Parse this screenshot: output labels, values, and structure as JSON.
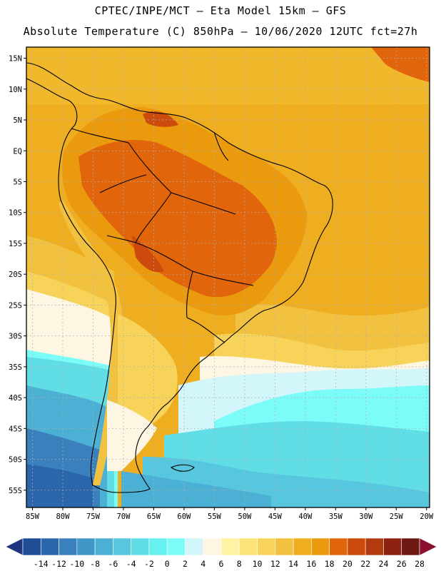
{
  "header": {
    "line1": "CPTEC/INPE/MCT –  Eta Model 15km – GFS",
    "line2": "Absolute Temperature (C) 850hPa – 10/06/2020 12UTC fct=27h"
  },
  "map": {
    "lat_labels": [
      "15N",
      "10N",
      "5N",
      "EQ",
      "5S",
      "10S",
      "15S",
      "20S",
      "25S",
      "30S",
      "35S",
      "40S",
      "45S",
      "50S",
      "55S"
    ],
    "lon_labels": [
      "85W",
      "80W",
      "75W",
      "70W",
      "65W",
      "60W",
      "55W",
      "50W",
      "45W",
      "40W",
      "35W",
      "30W",
      "25W",
      "20W"
    ],
    "lat_values": [
      15,
      10,
      5,
      0,
      -5,
      -10,
      -15,
      -20,
      -25,
      -30,
      -35,
      -40,
      -45,
      -50,
      -55
    ],
    "lon_values": [
      -85,
      -80,
      -75,
      -70,
      -65,
      -60,
      -55,
      -50,
      -45,
      -40,
      -35,
      -30,
      -25,
      -20
    ]
  },
  "colorbar": {
    "labels": [
      "-14",
      "-12",
      "-10",
      "-8",
      "-6",
      "-4",
      "-2",
      "0",
      "2",
      "4",
      "6",
      "8",
      "10",
      "12",
      "14",
      "16",
      "18",
      "20",
      "22",
      "24",
      "26",
      "28"
    ],
    "colors": [
      "#20357f",
      "#1f4e97",
      "#2b66ab",
      "#3a80bd",
      "#3f98c8",
      "#4cb0d4",
      "#57c6df",
      "#61dde6",
      "#66f0f0",
      "#7cfcf8",
      "#d3f6fb",
      "#fdf6e2",
      "#fff3a3",
      "#fbe37a",
      "#f7d35a",
      "#f2c140",
      "#efad20",
      "#eb9a0e",
      "#e0650b",
      "#cc4a0b",
      "#b23a0f",
      "#8d2210",
      "#6e1a14",
      "#8b1030"
    ]
  }
}
